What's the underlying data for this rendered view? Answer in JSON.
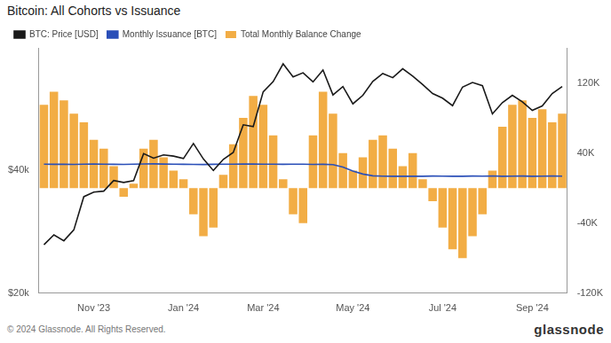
{
  "chart_data": {
    "type": "bar",
    "title": "Bitcoin: All Cohorts vs Issuance",
    "annotations": [
      "© 2024 Glassnode. All Rights Reserved.",
      "glassnode"
    ],
    "categories": [
      null,
      null,
      null,
      null,
      null,
      "Nov '23",
      null,
      null,
      null,
      null,
      null,
      null,
      null,
      null,
      "Jan '24",
      null,
      null,
      null,
      null,
      null,
      null,
      null,
      "Mar '24",
      null,
      null,
      null,
      null,
      null,
      null,
      null,
      null,
      "May '24",
      null,
      null,
      null,
      null,
      null,
      null,
      null,
      null,
      "Jul '24",
      null,
      null,
      null,
      null,
      null,
      null,
      null,
      null,
      "Sep '24",
      null,
      null,
      null
    ],
    "series": [
      {
        "name": "BTC: Price [USD]",
        "color": "#1a1a1a",
        "type": "line",
        "values": [
          26300,
          27800,
          26900,
          28600,
          34500,
          35400,
          35600,
          37800,
          37400,
          37800,
          44000,
          42900,
          43700,
          43400,
          42800,
          46600,
          42700,
          40000,
          42600,
          44300,
          51800,
          51300,
          62400,
          66100,
          73100,
          67900,
          69500,
          66000,
          70600,
          61300,
          64300,
          58300,
          61200,
          66200,
          69200,
          67600,
          71100,
          68200,
          65000,
          61800,
          60200,
          57700,
          64100,
          65800,
          64600,
          55100,
          58700,
          61200,
          59000,
          56200,
          57600,
          61800,
          64300
        ]
      },
      {
        "name": "Monthly Issuance [BTC]",
        "color": "#2a4fb8",
        "type": "line",
        "axis": "y2",
        "values": [
          27200,
          27100,
          27300,
          27000,
          27200,
          27400,
          27300,
          27100,
          27000,
          27200,
          27500,
          27600,
          27400,
          27300,
          27100,
          27000,
          26900,
          27100,
          27300,
          27200,
          27400,
          27500,
          27300,
          27200,
          27100,
          27300,
          27200,
          27000,
          27100,
          26800,
          24000,
          19500,
          16000,
          14000,
          13600,
          13500,
          13400,
          13600,
          13500,
          13700,
          13600,
          13400,
          13500,
          13700,
          13600,
          13800,
          13500,
          13600,
          13700,
          13500,
          13600,
          13700,
          13600
        ]
      },
      {
        "name": "Total Monthly Balance Change",
        "color": "#f2ad45",
        "type": "bar",
        "axis": "y2",
        "values": [
          95000,
          110000,
          100000,
          85000,
          75000,
          55000,
          45000,
          25000,
          -10000,
          5000,
          45000,
          55000,
          35000,
          20000,
          10000,
          -30000,
          -55000,
          -45000,
          15000,
          50000,
          80000,
          105000,
          95000,
          60000,
          10000,
          -30000,
          -40000,
          60000,
          110000,
          85000,
          40000,
          20000,
          35000,
          55000,
          60000,
          45000,
          25000,
          40000,
          10000,
          -15000,
          -45000,
          -70000,
          -80000,
          -55000,
          -30000,
          20000,
          70000,
          95000,
          100000,
          80000,
          90000,
          75000,
          85000
        ]
      }
    ],
    "ylim": [
      20000,
      80000
    ],
    "yticks": [
      {
        "value": 20000,
        "label": "$20k"
      },
      {
        "value": 40000,
        "label": "$40k"
      }
    ],
    "y2lim": [
      -120000,
      160000
    ],
    "y2ticks": [
      {
        "value": -120000,
        "label": "-120K"
      },
      {
        "value": -40000,
        "label": "-40K"
      },
      {
        "value": 40000,
        "label": "40K"
      },
      {
        "value": 120000,
        "label": "120K"
      }
    ],
    "log": "y",
    "grid": false,
    "legend": "top-left"
  }
}
